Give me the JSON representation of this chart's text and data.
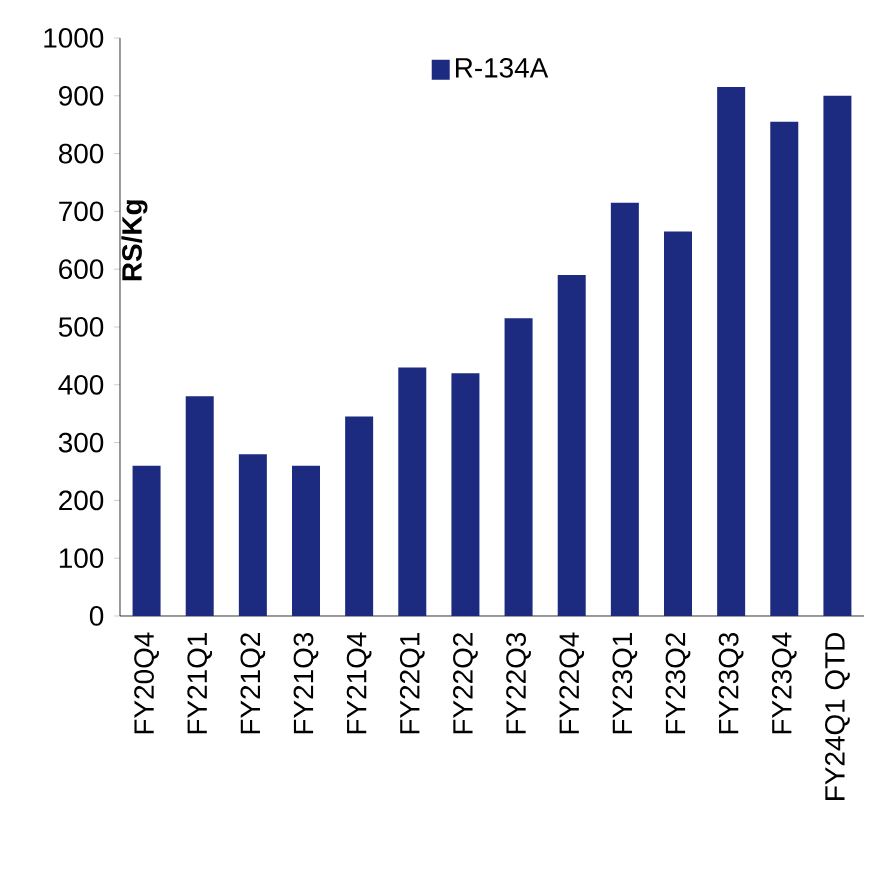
{
  "chart_data": {
    "type": "bar",
    "ylabel": "RS/Kg",
    "categories": [
      "FY20Q4",
      "FY21Q1",
      "FY21Q2",
      "FY21Q3",
      "FY21Q4",
      "FY22Q1",
      "FY22Q2",
      "FY22Q3",
      "FY22Q4",
      "FY23Q1",
      "FY23Q2",
      "FY23Q3",
      "FY23Q4",
      "FY24Q1 QTD"
    ],
    "series": [
      {
        "name": "R-134A",
        "color": "#1c2a80",
        "values": [
          260,
          380,
          280,
          260,
          345,
          430,
          420,
          515,
          590,
          715,
          665,
          915,
          855,
          900
        ]
      }
    ],
    "ylim": [
      0,
      1000
    ],
    "yticks": [
      0,
      100,
      200,
      300,
      400,
      500,
      600,
      700,
      800,
      900,
      1000
    ],
    "legend": "top",
    "grid": false
  }
}
